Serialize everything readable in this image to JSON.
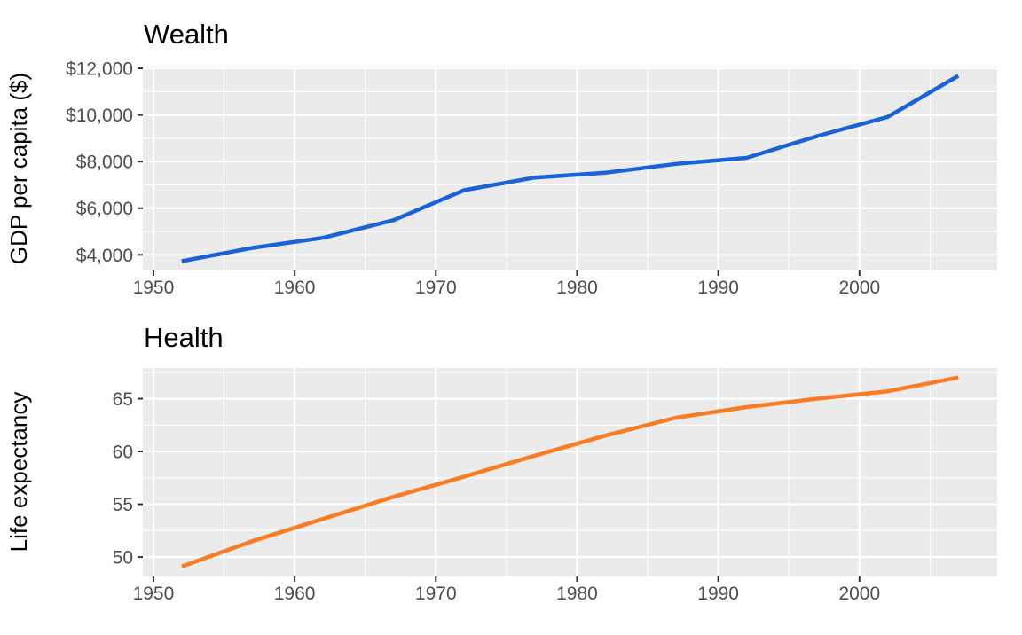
{
  "figure": {
    "background_color": "#ffffff",
    "panel_background_color": "#ebebeb",
    "gridline_color": "#ffffff",
    "tick_mark_color": "#333333",
    "tick_label_color": "#4d4d4d",
    "title_color": "#000000"
  },
  "chart_data": [
    {
      "type": "line",
      "title": "Wealth",
      "xlabel": "",
      "ylabel": "GDP per capita ($)",
      "legend": "none",
      "grid": true,
      "line_color": "#1b62d8",
      "x": [
        1952,
        1957,
        1962,
        1967,
        1972,
        1977,
        1982,
        1987,
        1992,
        1997,
        2002,
        2007
      ],
      "y": [
        3725,
        4299,
        4726,
        5484,
        6770,
        7313,
        7519,
        7901,
        8159,
        9090,
        9918,
        11680
      ],
      "xlim": [
        1949.25,
        2009.75
      ],
      "ylim": [
        3327,
        12078
      ],
      "x_ticks": {
        "values": [
          1950,
          1960,
          1970,
          1980,
          1990,
          2000
        ],
        "labels": [
          "1950",
          "1960",
          "1970",
          "1980",
          "1990",
          "2000"
        ]
      },
      "y_ticks": {
        "values": [
          4000,
          6000,
          8000,
          10000,
          12000
        ],
        "labels": [
          "$4,000",
          "$6,000",
          "$8,000",
          "$10,000",
          "$12,000"
        ]
      },
      "x_minor": [
        1955,
        1965,
        1975,
        1985,
        1995,
        2005
      ],
      "y_minor": [
        5000,
        7000,
        9000,
        11000
      ]
    },
    {
      "type": "line",
      "title": "Health",
      "xlabel": "",
      "ylabel": "Life expectancy",
      "legend": "none",
      "grid": true,
      "line_color": "#f97c22",
      "x": [
        1952,
        1957,
        1962,
        1967,
        1972,
        1977,
        1982,
        1987,
        1992,
        1997,
        2002,
        2007
      ],
      "y": [
        49.1,
        51.5,
        53.6,
        55.7,
        57.6,
        59.6,
        61.5,
        63.2,
        64.2,
        65.0,
        65.7,
        67.0
      ],
      "xlim": [
        1949.25,
        2009.75
      ],
      "ylim": [
        48.16,
        67.9
      ],
      "x_ticks": {
        "values": [
          1950,
          1960,
          1970,
          1980,
          1990,
          2000
        ],
        "labels": [
          "1950",
          "1960",
          "1970",
          "1980",
          "1990",
          "2000"
        ]
      },
      "y_ticks": {
        "values": [
          50,
          55,
          60,
          65
        ],
        "labels": [
          "50",
          "55",
          "60",
          "65"
        ]
      },
      "x_minor": [
        1955,
        1965,
        1975,
        1985,
        1995,
        2005
      ],
      "y_minor": [
        52.5,
        57.5,
        62.5,
        67.5
      ]
    }
  ]
}
